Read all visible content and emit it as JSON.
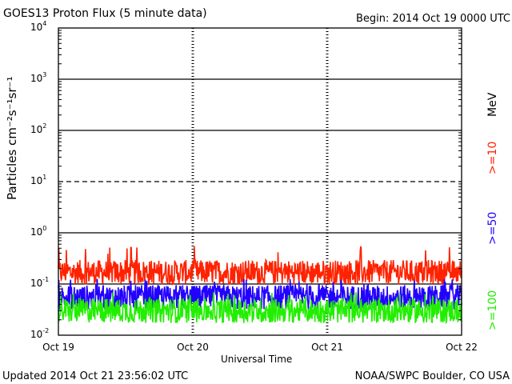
{
  "header": {
    "title": "GOES13 Proton Flux (5 minute data)",
    "begin": "Begin: 2014 Oct 19 0000 UTC"
  },
  "footer": {
    "updated": "Updated 2014 Oct 21 23:56:02 UTC",
    "credit": "NOAA/SWPC Boulder, CO USA"
  },
  "axes": {
    "xlabel": "Universal Time",
    "ylabel": "Particles cm⁻²s⁻¹sr⁻¹",
    "legend_unit": "MeV"
  },
  "colors": {
    "ge10": "#ff2200",
    "ge50": "#2200ff",
    "ge100": "#22ee00"
  },
  "chart_data": {
    "type": "line",
    "title": "GOES13 Proton Flux (5 minute data)",
    "xlabel": "Universal Time",
    "ylabel": "Particles cm-2 s-1 sr-1",
    "yscale": "log",
    "ylim": [
      0.01,
      10000
    ],
    "xlim": [
      "2014-10-19",
      "2014-10-22"
    ],
    "x_ticks": [
      "Oct 19",
      "Oct 20",
      "Oct 21",
      "Oct 22"
    ],
    "y_ticks": [
      "10^-2",
      "10^-1",
      "10^0",
      "10^1",
      "10^2",
      "10^3",
      "10^4"
    ],
    "y_tick_base": "10",
    "y_tick_exponents": [
      "-2",
      "-1",
      "0",
      "1",
      "2",
      "3",
      "4"
    ],
    "threshold_lines": [
      {
        "value": 1000,
        "style": "solid"
      },
      {
        "value": 100,
        "style": "solid"
      },
      {
        "value": 10,
        "style": "dashed"
      },
      {
        "value": 1,
        "style": "solid"
      },
      {
        "value": 0.1,
        "style": "solid"
      }
    ],
    "series": [
      {
        "name": ">=10",
        "color": "#ff2200",
        "typical": 0.17,
        "min": 0.08,
        "max": 0.55
      },
      {
        "name": ">=50",
        "color": "#2200ff",
        "typical": 0.055,
        "min": 0.03,
        "max": 0.13
      },
      {
        "name": ">=100",
        "color": "#22ee00",
        "typical": 0.03,
        "min": 0.016,
        "max": 0.07
      }
    ]
  }
}
